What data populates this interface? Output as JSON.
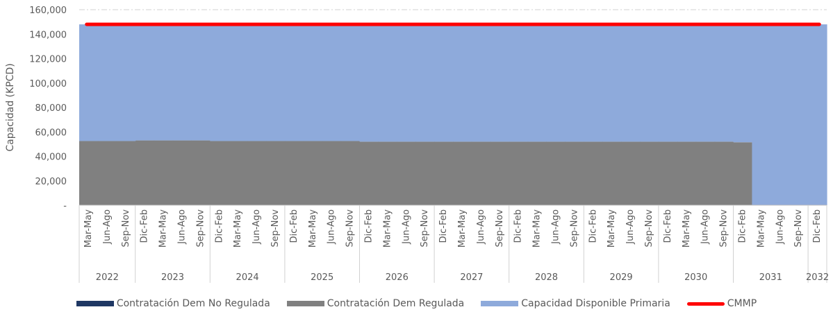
{
  "chart_data": {
    "type": "area",
    "ylabel": "Capacidad (KPCD)",
    "ylim": [
      0,
      160000
    ],
    "y_ticks": [
      0,
      20000,
      40000,
      60000,
      80000,
      100000,
      120000,
      140000,
      160000
    ],
    "y_tick_labels": [
      "-",
      "20,000",
      "40,000",
      "60,000",
      "80,000",
      "100,000",
      "120,000",
      "140,000",
      "160,000"
    ],
    "grid": "top dash-dot gridline only",
    "legend_position": "bottom",
    "categories": [
      "Mar-May",
      "Jun-Ago",
      "Sep-Nov",
      "Dic-Feb",
      "Mar-May",
      "Jun-Ago",
      "Sep-Nov",
      "Dic-Feb",
      "Mar-May",
      "Jun-Ago",
      "Sep-Nov",
      "Dic-Feb",
      "Mar-May",
      "Jun-Ago",
      "Sep-Nov",
      "Dic-Feb",
      "Mar-May",
      "Jun-Ago",
      "Sep-Nov",
      "Dic-Feb",
      "Mar-May",
      "Jun-Ago",
      "Sep-Nov",
      "Dic-Feb",
      "Mar-May",
      "Jun-Ago",
      "Sep-Nov",
      "Dic-Feb",
      "Mar-May",
      "Jun-Ago",
      "Sep-Nov",
      "Dic-Feb",
      "Mar-May",
      "Jun-Ago",
      "Sep-Nov",
      "Dic-Feb",
      "Mar-May",
      "Jun-Ago",
      "Sep-Nov",
      "Dic-Feb"
    ],
    "year_groups": [
      {
        "label": "2022",
        "count": 3
      },
      {
        "label": "2023",
        "count": 4
      },
      {
        "label": "2024",
        "count": 4
      },
      {
        "label": "2025",
        "count": 4
      },
      {
        "label": "2026",
        "count": 4
      },
      {
        "label": "2027",
        "count": 4
      },
      {
        "label": "2028",
        "count": 4
      },
      {
        "label": "2029",
        "count": 4
      },
      {
        "label": "2030",
        "count": 4
      },
      {
        "label": "2031",
        "count": 4
      },
      {
        "label": "2032",
        "count": 1
      }
    ],
    "series": [
      {
        "name": "Contratación Dem No Regulada",
        "kind": "area",
        "color": "#1f3864",
        "values": [
          0,
          0,
          0,
          0,
          0,
          0,
          0,
          0,
          0,
          0,
          0,
          0,
          0,
          0,
          0,
          0,
          0,
          0,
          0,
          0,
          0,
          0,
          0,
          0,
          0,
          0,
          0,
          0,
          0,
          0,
          0,
          0,
          0,
          0,
          0,
          0,
          0,
          0,
          0,
          0
        ]
      },
      {
        "name": "Contratación Dem Regulada",
        "kind": "area",
        "color": "#808080",
        "values": [
          52500,
          52500,
          52500,
          53000,
          53000,
          53000,
          53000,
          52500,
          52500,
          52500,
          52500,
          52500,
          52500,
          52500,
          52500,
          52000,
          52000,
          52000,
          52000,
          52000,
          52000,
          52000,
          52000,
          52000,
          52000,
          52000,
          52000,
          52000,
          52000,
          52000,
          52000,
          52000,
          52000,
          52000,
          52000,
          51500,
          0,
          0,
          0,
          0
        ]
      },
      {
        "name": "Capacidad Disponible Primaria",
        "kind": "area",
        "color": "#8eaadb",
        "values": [
          95500,
          95500,
          95500,
          95000,
          95000,
          95000,
          95000,
          95500,
          95500,
          95500,
          95500,
          95500,
          95500,
          95500,
          95500,
          96000,
          96000,
          96000,
          96000,
          96000,
          96000,
          96000,
          96000,
          96000,
          96000,
          96000,
          96000,
          96000,
          96000,
          96000,
          96000,
          96000,
          96000,
          96000,
          96000,
          96500,
          148000,
          148000,
          148000,
          148000
        ]
      },
      {
        "name": "CMMP",
        "kind": "line",
        "color": "#ff0000",
        "values": [
          148000,
          148000,
          148000,
          148000,
          148000,
          148000,
          148000,
          148000,
          148000,
          148000,
          148000,
          148000,
          148000,
          148000,
          148000,
          148000,
          148000,
          148000,
          148000,
          148000,
          148000,
          148000,
          148000,
          148000,
          148000,
          148000,
          148000,
          148000,
          148000,
          148000,
          148000,
          148000,
          148000,
          148000,
          148000,
          148000,
          148000,
          148000,
          148000,
          148000
        ]
      }
    ]
  }
}
